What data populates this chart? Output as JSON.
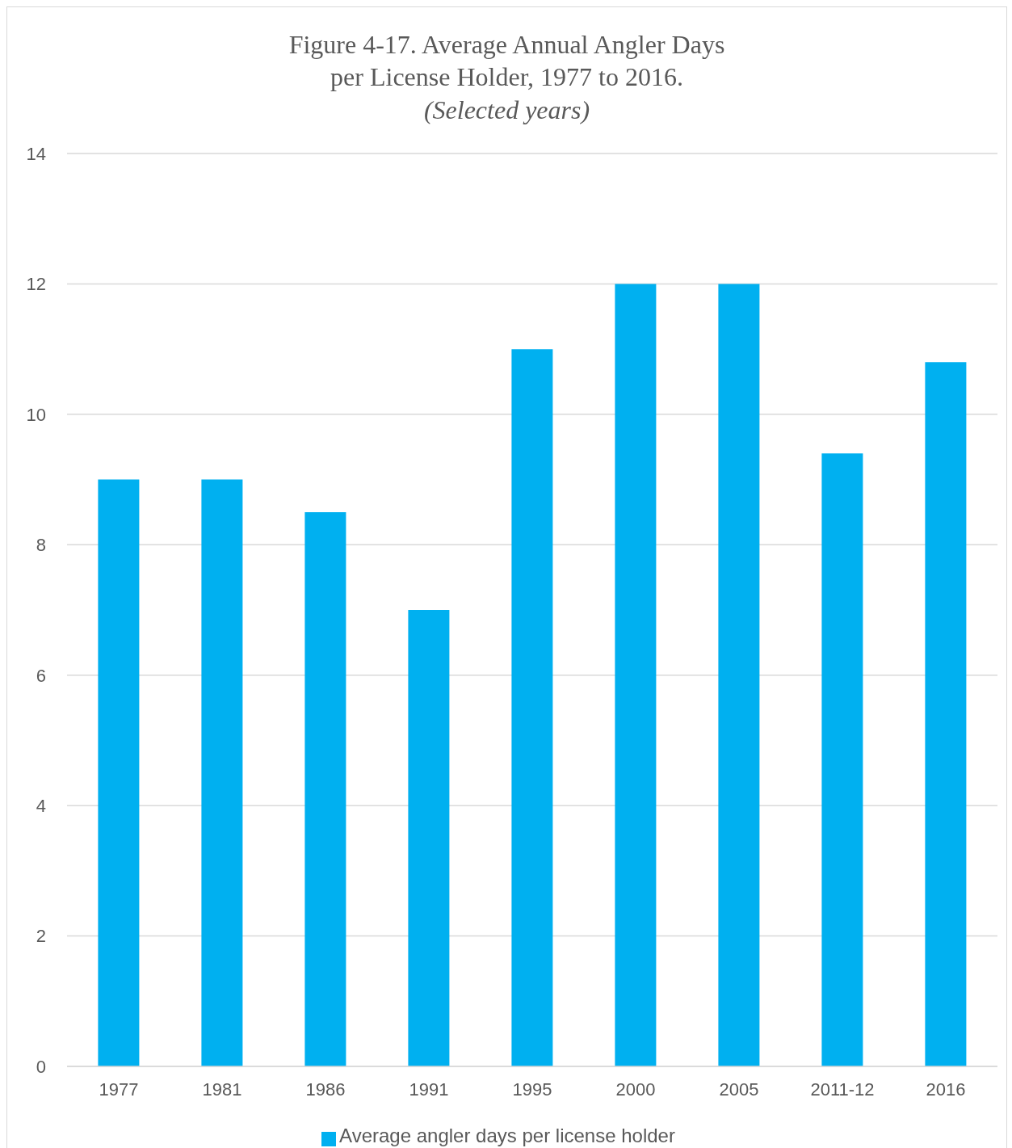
{
  "chart_data": {
    "type": "bar",
    "title": "Figure 4-17. Average Annual Angler Days\nper License Holder, 1977 to 2016.",
    "subtitle": "(Selected years)",
    "categories": [
      "1977",
      "1981",
      "1986",
      "1991",
      "1995",
      "2000",
      "2005",
      "2011-12",
      "2016"
    ],
    "series": [
      {
        "name": "Average angler days per license holder",
        "color": "#00b0f0",
        "values": [
          9,
          9,
          8.5,
          7,
          11,
          12,
          12,
          9.4,
          10.8
        ]
      }
    ],
    "ylim": [
      0,
      14
    ],
    "yticks": [
      0,
      2,
      4,
      6,
      8,
      10,
      12,
      14
    ],
    "grid": "y",
    "legend": "bottom"
  }
}
